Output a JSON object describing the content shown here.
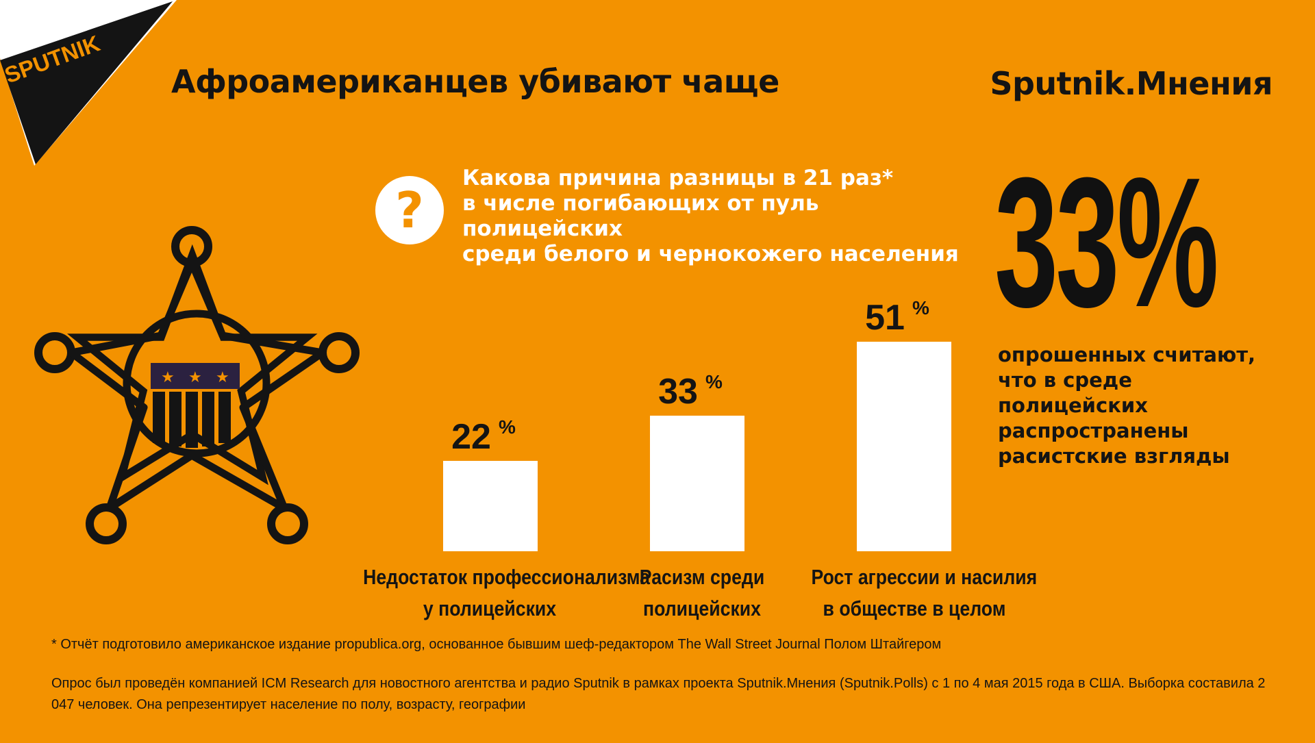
{
  "logo": {
    "text": "SPUTNIK"
  },
  "header": {
    "title": "Афроамериканцев убивают чаще",
    "brand": "Sputnik.Мнения"
  },
  "question": {
    "icon": "question-mark-icon",
    "line1": "Какова причина разницы в 21 раз*",
    "line2": "в числе погибающих от пуль полицейских",
    "line3": "среди белого и чернокожего населения"
  },
  "badge": {
    "icon": "sheriff-star-badge-icon"
  },
  "highlight": {
    "value": "33%",
    "caption_line1": "опрошенных считают,",
    "caption_line2": "что в среде полицейских",
    "caption_line3": "распространены",
    "caption_line4": "расистские взгляды"
  },
  "chart_data": {
    "type": "bar",
    "categories": [
      [
        "Недостаток профессионализма",
        "у полицейских"
      ],
      [
        "Расизм среди",
        "полицейских"
      ],
      [
        "Рост агрессии и насилия",
        "в обществе в целом"
      ]
    ],
    "values": [
      22,
      33,
      51
    ],
    "value_labels": [
      "22",
      "33",
      "51"
    ],
    "unit": "%",
    "ylim": [
      0,
      55
    ],
    "grid": false,
    "colors": {
      "bar": "#ffffff",
      "background": "#f39200",
      "text": "#141414"
    }
  },
  "footer": {
    "footnote": "* Отчёт подготовило американское издание propublica.org, основанное бывшим шеф-редактором The Wall Street Journal Полом Штайгером",
    "methodology": "Опрос был проведён компанией ICM Research для новостного агентства и радио Sputnik в рамках проекта Sputnik.Мнения (Sputnik.Polls) с 1 по 4 мая 2015 года в США. Выборка составила 2 047 человек. Она репрезентирует население по полу, возрасту, географии"
  }
}
